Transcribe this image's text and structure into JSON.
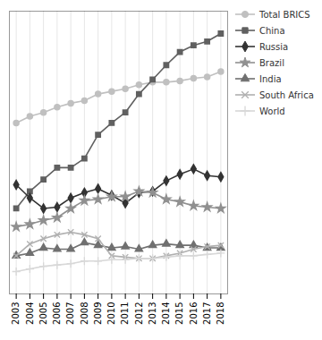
{
  "chart_data": {
    "type": "line",
    "x": [
      2003,
      2004,
      2005,
      2006,
      2007,
      2008,
      2009,
      2010,
      2011,
      2012,
      2013,
      2014,
      2015,
      2016,
      2017,
      2018
    ],
    "series": [
      {
        "name": "Total BRICS",
        "color": "#c0c0c0",
        "marker": "circle",
        "values": [
          1.75,
          1.8,
          1.83,
          1.87,
          1.9,
          1.92,
          1.97,
          1.99,
          2.01,
          2.04,
          2.06,
          2.06,
          2.07,
          2.09,
          2.1,
          2.14
        ]
      },
      {
        "name": "China",
        "color": "#606060",
        "marker": "square",
        "values": [
          1.1,
          1.23,
          1.32,
          1.41,
          1.41,
          1.48,
          1.66,
          1.75,
          1.83,
          1.97,
          2.08,
          2.19,
          2.29,
          2.34,
          2.37,
          2.43
        ]
      },
      {
        "name": "Russia",
        "color": "#333333",
        "marker": "diamond",
        "values": [
          1.28,
          1.18,
          1.1,
          1.11,
          1.18,
          1.22,
          1.25,
          1.2,
          1.14,
          1.22,
          1.23,
          1.31,
          1.36,
          1.4,
          1.35,
          1.34
        ]
      },
      {
        "name": "Brazil",
        "color": "#909090",
        "marker": "star",
        "values": [
          0.96,
          0.98,
          1.01,
          1.03,
          1.1,
          1.16,
          1.17,
          1.19,
          1.19,
          1.23,
          1.22,
          1.17,
          1.15,
          1.12,
          1.11,
          1.1
        ]
      },
      {
        "name": "India",
        "color": "#707070",
        "marker": "triangle",
        "values": [
          0.74,
          0.76,
          0.8,
          0.79,
          0.79,
          0.84,
          0.82,
          0.8,
          0.81,
          0.79,
          0.82,
          0.83,
          0.82,
          0.82,
          0.8,
          0.8
        ]
      },
      {
        "name": "South Africa",
        "color": "#b0b0b0",
        "marker": "x",
        "values": [
          0.74,
          0.83,
          0.87,
          0.9,
          0.92,
          0.9,
          0.87,
          0.74,
          0.73,
          0.72,
          0.72,
          0.74,
          0.76,
          0.79,
          0.81,
          0.82
        ]
      },
      {
        "name": "World",
        "color": "#d8d8d8",
        "marker": "plus",
        "values": [
          0.62,
          0.64,
          0.66,
          0.67,
          0.68,
          0.7,
          0.7,
          0.71,
          0.71,
          0.72,
          0.72,
          0.73,
          0.74,
          0.74,
          0.75,
          0.76
        ]
      }
    ],
    "xlim": [
      2002.5,
      2018.5
    ],
    "xticks": [
      2003,
      2004,
      2005,
      2006,
      2007,
      2008,
      2009,
      2010,
      2011,
      2012,
      2013,
      2014,
      2015,
      2016,
      2017,
      2018
    ],
    "ylim": [
      0.45,
      2.6
    ],
    "grid": "x",
    "tick_labels": "x",
    "legend": "right"
  }
}
